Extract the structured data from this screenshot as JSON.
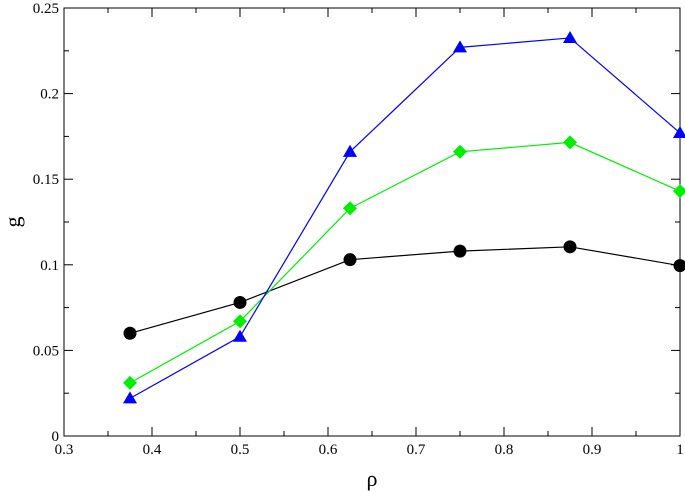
{
  "chart_data": {
    "type": "line",
    "title": "",
    "xlabel": "ρ",
    "ylabel": "g",
    "xlim": [
      0.3,
      1.0
    ],
    "ylim": [
      0,
      0.25
    ],
    "xticks": [
      0.3,
      0.4,
      0.5,
      0.6,
      0.7,
      0.8,
      0.9,
      1.0
    ],
    "xtick_labels": [
      "0.3",
      "0.4",
      "0.5",
      "0.6",
      "0.7",
      "0.8",
      "0.9",
      "1"
    ],
    "yticks": [
      0,
      0.05,
      0.1,
      0.15,
      0.2,
      0.25
    ],
    "ytick_labels": [
      "0",
      "0.05",
      "0.1",
      "0.15",
      "0.2",
      "0.25"
    ],
    "grid": false,
    "legend": "none",
    "x": [
      0.375,
      0.5,
      0.625,
      0.75,
      0.875,
      1.0
    ],
    "series": [
      {
        "marker": "circle",
        "color": "#000000",
        "values": [
          0.06,
          0.078,
          0.103,
          0.108,
          0.1105,
          0.0995
        ]
      },
      {
        "marker": "diamond",
        "color": "#00ee00",
        "values": [
          0.031,
          0.067,
          0.133,
          0.166,
          0.1715,
          0.143
        ]
      },
      {
        "marker": "triangle",
        "color": "#0000ff",
        "values": [
          0.022,
          0.058,
          0.166,
          0.227,
          0.2325,
          0.177
        ]
      }
    ]
  }
}
